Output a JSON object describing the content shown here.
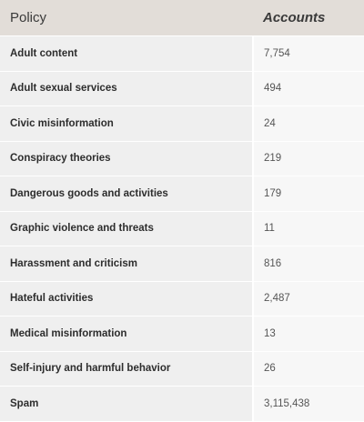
{
  "table": {
    "headers": {
      "policy": "Policy",
      "accounts": "Accounts"
    },
    "rows": [
      {
        "policy": "Adult content",
        "accounts": "7,754"
      },
      {
        "policy": "Adult sexual services",
        "accounts": "494"
      },
      {
        "policy": "Civic misinformation",
        "accounts": "24"
      },
      {
        "policy": "Conspiracy theories",
        "accounts": "219"
      },
      {
        "policy": "Dangerous goods and activities",
        "accounts": "179"
      },
      {
        "policy": "Graphic violence and threats",
        "accounts": "11"
      },
      {
        "policy": "Harassment and criticism",
        "accounts": "816"
      },
      {
        "policy": "Hateful activities",
        "accounts": "2,487"
      },
      {
        "policy": "Medical misinformation",
        "accounts": "13"
      },
      {
        "policy": "Self-injury and harmful behavior",
        "accounts": "26"
      },
      {
        "policy": "Spam",
        "accounts": "3,115,438"
      }
    ]
  }
}
